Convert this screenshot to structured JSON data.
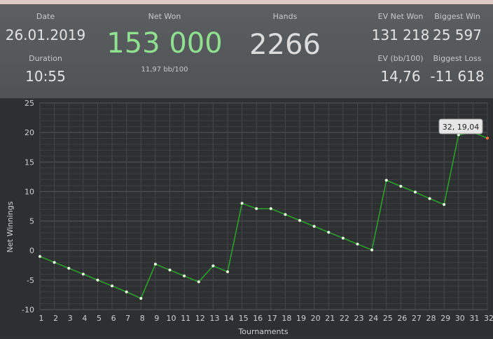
{
  "summary": {
    "date": {
      "label": "Date",
      "value": "26.01.2019"
    },
    "duration": {
      "label": "Duration",
      "value": "10:55"
    },
    "net_won": {
      "label": "Net Won",
      "value": "153 000",
      "sub": "11,97 bb/100"
    },
    "hands": {
      "label": "Hands",
      "value": "2266"
    },
    "ev_net_won": {
      "label": "EV Net Won",
      "value": "131 218"
    },
    "biggest_win": {
      "label": "Biggest Win",
      "value": "25 597"
    },
    "ev_bb100": {
      "label": "EV (bb/100)",
      "value": "14,76"
    },
    "biggest_loss": {
      "label": "Biggest Loss",
      "value": "-11 618"
    }
  },
  "colors": {
    "net_won": "#8fe08f",
    "line": "#2aa02a",
    "points": "#e8ffe0"
  },
  "tooltip": {
    "text": "32, 19,04"
  },
  "chart_data": {
    "type": "line",
    "xlabel": "Tournaments",
    "ylabel": "Net Winnings",
    "ylim": [
      -10,
      25
    ],
    "xlim": [
      1,
      32
    ],
    "yticks": [
      -10,
      -5,
      0,
      5,
      10,
      15,
      20,
      25
    ],
    "grid": true,
    "x": [
      1,
      2,
      3,
      4,
      5,
      6,
      7,
      8,
      9,
      10,
      11,
      12,
      13,
      14,
      15,
      16,
      17,
      18,
      19,
      20,
      21,
      22,
      23,
      24,
      25,
      26,
      27,
      28,
      29,
      30,
      31,
      32
    ],
    "values": [
      -1,
      -2,
      -3,
      -4,
      -5,
      -6,
      -7,
      -8.1,
      -2.3,
      -3.3,
      -4.3,
      -5.3,
      -2.6,
      -3.6,
      8,
      7.1,
      7.1,
      6.1,
      5.1,
      4.1,
      3.1,
      2.1,
      1.1,
      0.1,
      11.9,
      10.9,
      9.9,
      8.8,
      7.8,
      19.6,
      20,
      19.04
    ]
  }
}
